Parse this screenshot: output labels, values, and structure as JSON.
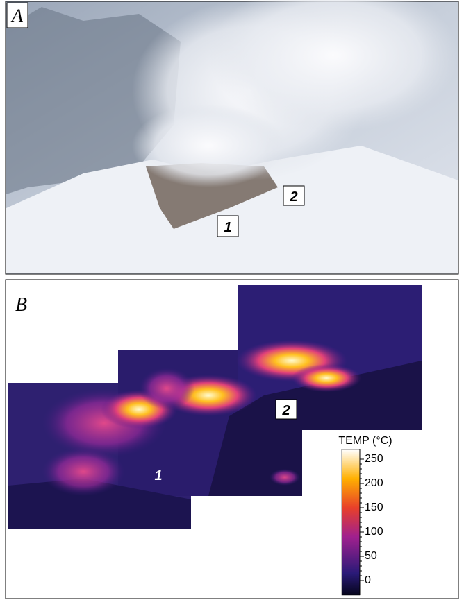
{
  "panel_a": {
    "label": "A",
    "markers": [
      "1",
      "2"
    ]
  },
  "panel_b": {
    "label": "B",
    "markers": [
      "1",
      "2"
    ],
    "colorbar": {
      "title": "TEMP (°C)",
      "lim": [
        -30,
        270
      ],
      "ticks": [
        0,
        50,
        100,
        150,
        200,
        250
      ]
    }
  }
}
